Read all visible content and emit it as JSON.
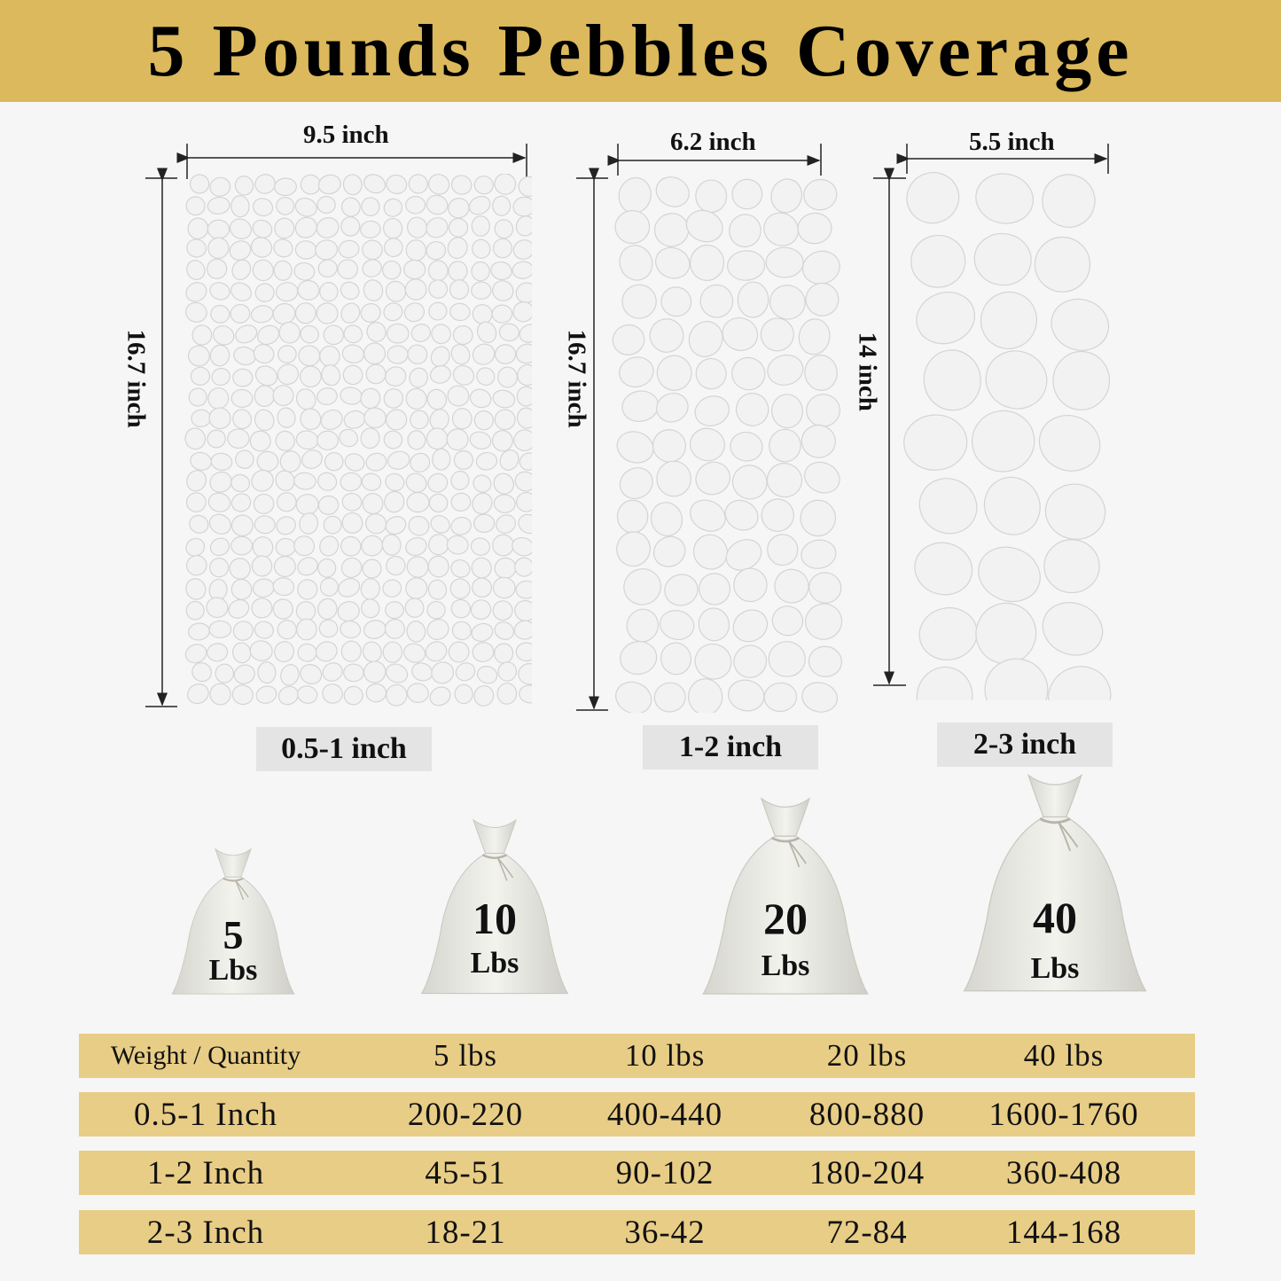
{
  "title": "5 Pounds Pebbles Coverage",
  "colors": {
    "header_bg": "#dbb95c",
    "table_row_bg": "#e8cd86",
    "label_bg": "#e4e4e4",
    "pebble": "#f2f2f2"
  },
  "panels": [
    {
      "width_label": "9.5 inch",
      "height_label": "16.7 inch",
      "size_label": "0.5-1 inch"
    },
    {
      "width_label": "6.2 inch",
      "height_label": "16.7 inch",
      "size_label": "1-2 inch"
    },
    {
      "width_label": "5.5 inch",
      "height_label": "14 inch",
      "size_label": "2-3 inch"
    }
  ],
  "bags": [
    {
      "number": "5",
      "unit": "Lbs"
    },
    {
      "number": "10",
      "unit": "Lbs"
    },
    {
      "number": "20",
      "unit": "Lbs"
    },
    {
      "number": "40",
      "unit": "Lbs"
    }
  ],
  "table": {
    "header": [
      "Weight / Quantity",
      "5 lbs",
      "10 lbs",
      "20 lbs",
      "40 lbs"
    ],
    "rows": [
      [
        "0.5-1 Inch",
        "200-220",
        "400-440",
        "800-880",
        "1600-1760"
      ],
      [
        "1-2 Inch",
        "45-51",
        "90-102",
        "180-204",
        "360-408"
      ],
      [
        "2-3 Inch",
        "18-21",
        "36-42",
        "72-84",
        "144-168"
      ]
    ]
  }
}
